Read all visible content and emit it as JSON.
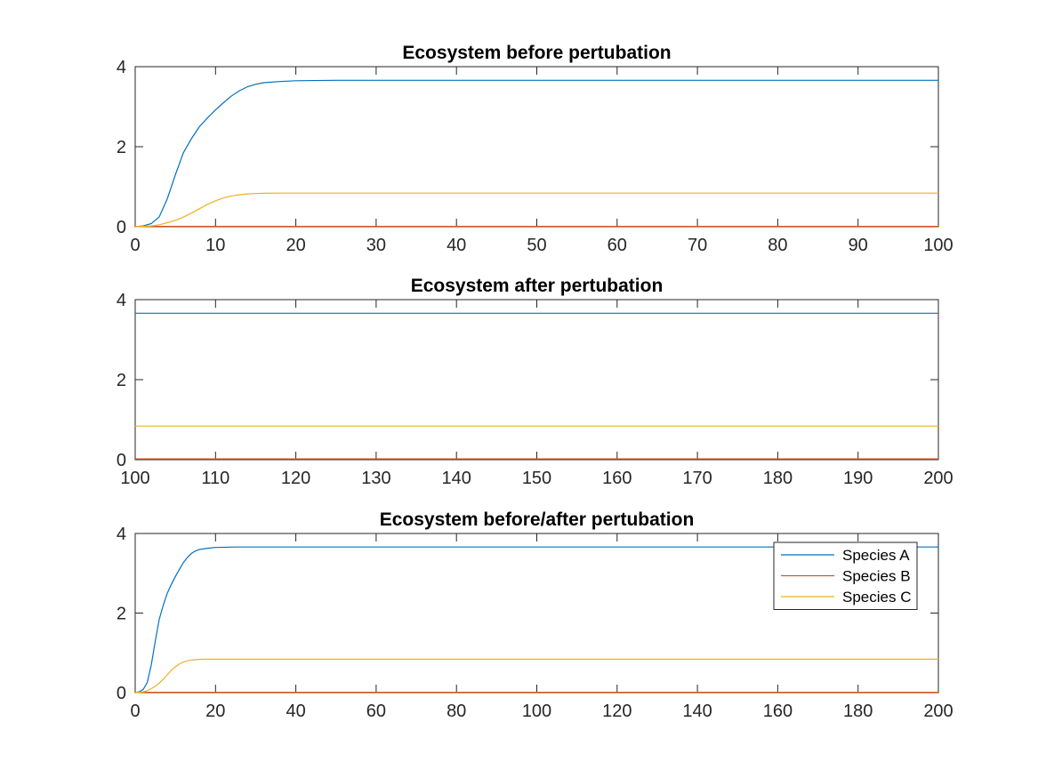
{
  "chart_data": [
    {
      "type": "line",
      "title": "Ecosystem before pertubation",
      "xlabel": "",
      "ylabel": "",
      "xlim": [
        0,
        100
      ],
      "ylim": [
        0,
        4
      ],
      "xticks": [
        0,
        10,
        20,
        30,
        40,
        50,
        60,
        70,
        80,
        90,
        100
      ],
      "yticks": [
        0,
        2,
        4
      ],
      "grid": false,
      "series": [
        {
          "color": "#0072BD",
          "x": [
            0,
            1,
            2,
            3,
            4,
            5,
            6,
            7,
            8,
            9,
            10,
            11,
            12,
            13,
            14,
            15,
            16,
            18,
            20,
            25,
            30,
            40,
            50,
            60,
            70,
            80,
            90,
            100
          ],
          "y": [
            0.0,
            0.02,
            0.08,
            0.25,
            0.7,
            1.3,
            1.85,
            2.2,
            2.5,
            2.72,
            2.92,
            3.1,
            3.27,
            3.4,
            3.5,
            3.56,
            3.6,
            3.63,
            3.65,
            3.66,
            3.66,
            3.66,
            3.66,
            3.66,
            3.66,
            3.66,
            3.66,
            3.66
          ]
        },
        {
          "color": "#D95319",
          "x": [
            0,
            100
          ],
          "y": [
            0.01,
            0.01
          ]
        },
        {
          "color": "#EDB120",
          "x": [
            0,
            1,
            2,
            3,
            4,
            5,
            6,
            7,
            8,
            9,
            10,
            11,
            12,
            13,
            14,
            15,
            16,
            18,
            20,
            25,
            30,
            40,
            50,
            60,
            70,
            80,
            90,
            100
          ],
          "y": [
            0.0,
            0.01,
            0.02,
            0.05,
            0.1,
            0.16,
            0.24,
            0.34,
            0.45,
            0.56,
            0.65,
            0.72,
            0.77,
            0.8,
            0.82,
            0.83,
            0.835,
            0.84,
            0.84,
            0.84,
            0.84,
            0.84,
            0.84,
            0.84,
            0.84,
            0.84,
            0.84,
            0.84
          ]
        }
      ]
    },
    {
      "type": "line",
      "title": "Ecosystem after pertubation",
      "xlabel": "",
      "ylabel": "",
      "xlim": [
        100,
        200
      ],
      "ylim": [
        0,
        4
      ],
      "xticks": [
        100,
        110,
        120,
        130,
        140,
        150,
        160,
        170,
        180,
        190,
        200
      ],
      "yticks": [
        0,
        2,
        4
      ],
      "grid": false,
      "series": [
        {
          "color": "#0072BD",
          "x": [
            100,
            200
          ],
          "y": [
            3.66,
            3.66
          ]
        },
        {
          "color": "#D95319",
          "x": [
            100,
            200
          ],
          "y": [
            0.02,
            0.02
          ]
        },
        {
          "color": "#EDB120",
          "x": [
            100,
            200
          ],
          "y": [
            0.84,
            0.84
          ]
        }
      ]
    },
    {
      "type": "line",
      "title": "Ecosystem before/after pertubation",
      "xlabel": "",
      "ylabel": "",
      "xlim": [
        0,
        200
      ],
      "ylim": [
        0,
        4
      ],
      "xticks": [
        0,
        20,
        40,
        60,
        80,
        100,
        120,
        140,
        160,
        180,
        200
      ],
      "yticks": [
        0,
        2,
        4
      ],
      "grid": false,
      "legend": "top-right",
      "series": [
        {
          "name": "Species A",
          "color": "#0072BD",
          "x": [
            0,
            1,
            2,
            3,
            4,
            5,
            6,
            7,
            8,
            9,
            10,
            11,
            12,
            13,
            14,
            15,
            16,
            18,
            20,
            25,
            30,
            40,
            60,
            100,
            140,
            200
          ],
          "y": [
            0.0,
            0.02,
            0.08,
            0.25,
            0.7,
            1.3,
            1.85,
            2.2,
            2.5,
            2.72,
            2.92,
            3.1,
            3.27,
            3.4,
            3.5,
            3.56,
            3.6,
            3.63,
            3.65,
            3.66,
            3.66,
            3.66,
            3.66,
            3.66,
            3.66,
            3.66
          ]
        },
        {
          "name": "Species B",
          "color": "#D95319",
          "x": [
            0,
            200
          ],
          "y": [
            0.01,
            0.01
          ]
        },
        {
          "name": "Species C",
          "color": "#EDB120",
          "x": [
            0,
            1,
            2,
            3,
            4,
            5,
            6,
            7,
            8,
            9,
            10,
            11,
            12,
            13,
            14,
            15,
            16,
            18,
            20,
            25,
            30,
            40,
            60,
            100,
            140,
            200
          ],
          "y": [
            0.0,
            0.01,
            0.02,
            0.05,
            0.1,
            0.16,
            0.24,
            0.34,
            0.45,
            0.56,
            0.65,
            0.72,
            0.77,
            0.8,
            0.82,
            0.83,
            0.835,
            0.84,
            0.84,
            0.84,
            0.84,
            0.84,
            0.84,
            0.84,
            0.84,
            0.84
          ]
        }
      ]
    }
  ]
}
